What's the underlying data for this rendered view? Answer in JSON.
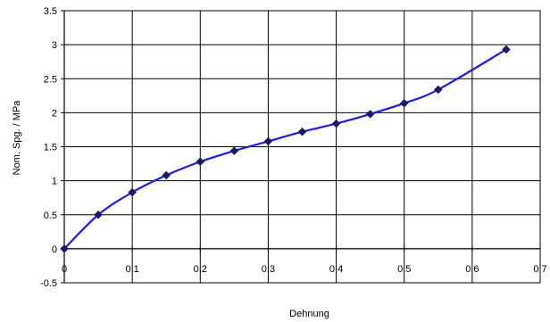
{
  "chart_data": {
    "type": "line",
    "title": "",
    "xlabel": "Dehnung",
    "ylabel": "Nom. Spg. / MPa",
    "xlim": [
      0,
      0.7
    ],
    "ylim": [
      -0.5,
      3.5
    ],
    "x_ticks": [
      "0",
      "0.1",
      "0.2",
      "0.3",
      "0.4",
      "0.5",
      "0.6",
      "0.7"
    ],
    "y_ticks": [
      "-0.5",
      "0",
      "0.5",
      "1",
      "1.5",
      "2",
      "2.5",
      "3",
      "3.5"
    ],
    "grid": true,
    "legend": "none",
    "series": [
      {
        "color": "#1a1aff",
        "marker_color": "#1a1a66",
        "x": [
          0,
          0.05,
          0.1,
          0.15,
          0.2,
          0.25,
          0.3,
          0.35,
          0.4,
          0.45,
          0.5,
          0.55,
          0.65
        ],
        "y": [
          0,
          0.5,
          0.83,
          1.08,
          1.28,
          1.44,
          1.58,
          1.72,
          1.84,
          1.98,
          2.14,
          2.34,
          2.93
        ]
      }
    ]
  }
}
